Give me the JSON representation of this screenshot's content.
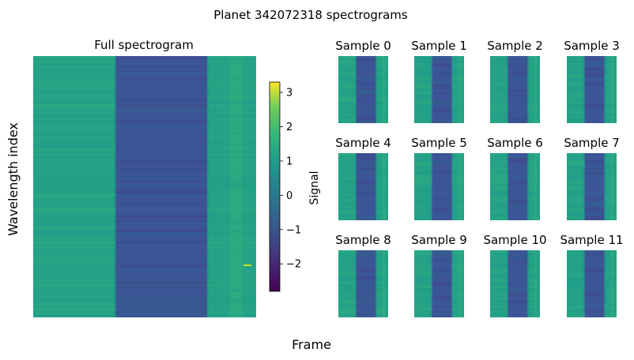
{
  "figure": {
    "suptitle": "Planet 342072318 spectrograms",
    "xlabel": "Frame",
    "ylabel": "Wavelength index"
  },
  "chart_data": [
    {
      "type": "heatmap",
      "title": "Full spectrogram",
      "colormap": "viridis",
      "transit_band": {
        "start_frac": 0.37,
        "end_frac": 0.78
      },
      "colorbar": {
        "label": "Signal",
        "range": [
          -2.8,
          3.3
        ],
        "ticks": [
          -2,
          -1,
          0,
          1,
          2,
          3
        ],
        "tick_labels": [
          "−2",
          "−1",
          "0",
          "1",
          "2",
          "3"
        ]
      },
      "axes": {
        "ticks_visible": false,
        "frame_visible": false
      }
    },
    {
      "type": "heatmap",
      "colormap": "viridis",
      "samples": [
        {
          "title": "Sample 0"
        },
        {
          "title": "Sample 1"
        },
        {
          "title": "Sample 2"
        },
        {
          "title": "Sample 3"
        },
        {
          "title": "Sample 4"
        },
        {
          "title": "Sample 5"
        },
        {
          "title": "Sample 6"
        },
        {
          "title": "Sample 7"
        },
        {
          "title": "Sample 8"
        },
        {
          "title": "Sample 9"
        },
        {
          "title": "Sample 10"
        },
        {
          "title": "Sample 11"
        }
      ],
      "transit_band": {
        "start_frac": 0.36,
        "end_frac": 0.75
      }
    }
  ]
}
